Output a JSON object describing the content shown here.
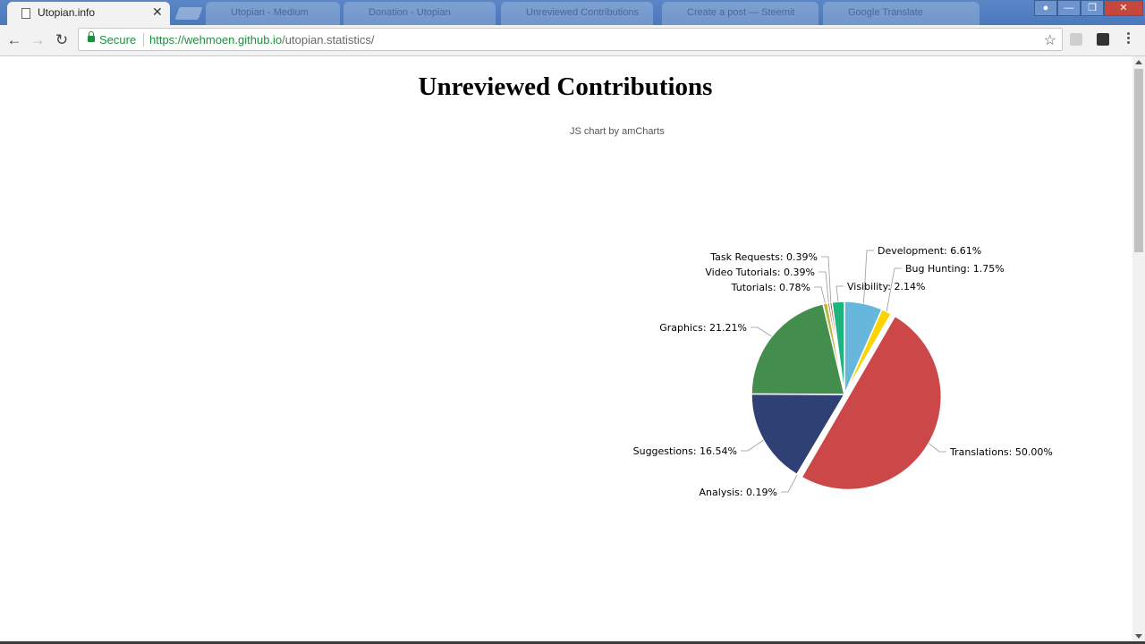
{
  "browser": {
    "active_tab": {
      "title": "Utopian.info",
      "close": "✕"
    },
    "background_tabs": [
      "Utopian - Medium",
      "Donation - Utopian",
      "Unreviewed Contributions",
      "Create a post — Steemit",
      "Google Translate"
    ],
    "secure_label": "Secure",
    "url": {
      "scheme": "https://",
      "host": "wehmoen.github.io",
      "path": "/utopian.statistics/"
    }
  },
  "page": {
    "title": "Unreviewed Contributions",
    "credit": "JS chart by amCharts"
  },
  "chart_data": {
    "type": "pie",
    "title": "Unreviewed Contributions",
    "slices": [
      {
        "label": "Development",
        "value": 6.61,
        "color": "#67b7dc"
      },
      {
        "label": "Bug Hunting",
        "value": 1.75,
        "color": "#fdd400"
      },
      {
        "label": "Translations",
        "value": 50.0,
        "color": "#cc4748"
      },
      {
        "label": "Analysis",
        "value": 0.19,
        "color": "#cd82ad"
      },
      {
        "label": "Suggestions",
        "value": 16.54,
        "color": "#2f4074"
      },
      {
        "label": "Graphics",
        "value": 21.21,
        "color": "#448e4d"
      },
      {
        "label": "Tutorials",
        "value": 0.78,
        "color": "#b7b83f"
      },
      {
        "label": "Video Tutorials",
        "value": 0.39,
        "color": "#b9783f"
      },
      {
        "label": "Task Requests",
        "value": 0.39,
        "color": "#b93e3d"
      },
      {
        "label": "Visibility",
        "value": 2.14,
        "color": "#1fb37e"
      }
    ]
  }
}
